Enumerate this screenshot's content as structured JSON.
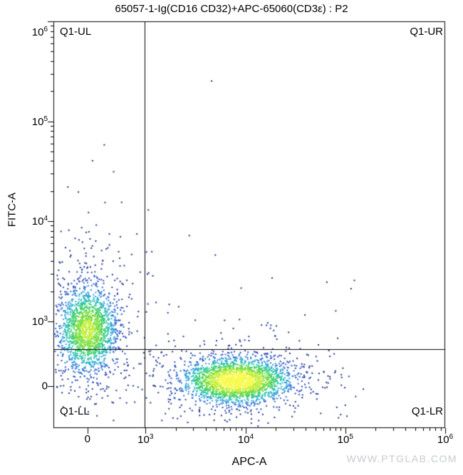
{
  "watermark": "WWW.PTGLAB.COM",
  "chart_data": {
    "type": "scatter",
    "subtype": "flow-cytometry-density-dot-plot",
    "title": "65057-1-Ig(CD16 CD32)+APC-65060(CD3ε) : P2",
    "xlabel": "APC-A",
    "ylabel": "FITC-A",
    "x_scale": "biexponential",
    "y_scale": "biexponential",
    "x_range_labels": [
      "0",
      "10^6"
    ],
    "y_range_labels": [
      "0",
      "10^6"
    ],
    "grid": false,
    "x_ticks": [
      {
        "label": "0",
        "pos": 0.087
      },
      {
        "label": "10^3",
        "pos": 0.235
      },
      {
        "label": "10^4",
        "pos": 0.491
      },
      {
        "label": "10^5",
        "pos": 0.745
      },
      {
        "label": "10^6",
        "pos": 1.0
      }
    ],
    "y_ticks": [
      {
        "label": "10^6",
        "pos": 0.0
      },
      {
        "label": "10^5",
        "pos": 0.246
      },
      {
        "label": "10^4",
        "pos": 0.491
      },
      {
        "label": "10^3",
        "pos": 0.738
      },
      {
        "label": "0",
        "pos": 0.897
      }
    ],
    "quadrants": {
      "x_gate_pos": 0.233,
      "y_gate_pos": 0.806,
      "labels": {
        "ul": "Q1-UL",
        "ur": "Q1-UR",
        "ll": "Q1-LL",
        "lr": "Q1-LR"
      }
    },
    "populations": [
      {
        "name": "fitc-positive-main",
        "dist": "gauss",
        "cx": 0.086,
        "cy": 0.757,
        "sx": 0.038,
        "sy": 0.052,
        "count": 1500
      },
      {
        "name": "fitc-positive-halo",
        "dist": "gauss",
        "cx": 0.086,
        "cy": 0.765,
        "sx": 0.072,
        "sy": 0.108,
        "count": 330
      },
      {
        "name": "fitc-positive-upper-tail",
        "dist": "gauss",
        "cx": 0.083,
        "cy": 0.615,
        "sx": 0.046,
        "sy": 0.095,
        "count": 55
      },
      {
        "name": "apc-positive-main",
        "dist": "gauss",
        "cx": 0.465,
        "cy": 0.882,
        "sx": 0.068,
        "sy": 0.027,
        "count": 2100
      },
      {
        "name": "apc-positive-halo",
        "dist": "gauss",
        "cx": 0.462,
        "cy": 0.878,
        "sx": 0.125,
        "sy": 0.058,
        "count": 400
      },
      {
        "name": "sparse-background",
        "dist": "uniform",
        "cx": 0.4,
        "cy": 0.77,
        "sx": 0.37,
        "sy": 0.21,
        "count": 55
      }
    ],
    "outliers": [
      [
        0.402,
        0.145
      ],
      [
        0.345,
        0.525
      ],
      [
        0.718,
        0.858
      ],
      [
        0.737,
        0.851
      ],
      [
        0.704,
        0.872
      ],
      [
        0.742,
        0.899
      ],
      [
        0.128,
        0.302
      ],
      [
        0.098,
        0.341
      ],
      [
        0.152,
        0.368
      ],
      [
        0.062,
        0.418
      ],
      [
        0.252,
        0.624
      ],
      [
        0.318,
        0.7
      ],
      [
        0.558,
        0.804
      ],
      [
        0.598,
        0.862
      ],
      [
        0.652,
        0.846
      ],
      [
        0.212,
        0.76
      ],
      [
        0.242,
        0.81
      ],
      [
        0.278,
        0.845
      ]
    ],
    "palette": [
      {
        "t": 0.78,
        "color": "#f7fa4e"
      },
      {
        "t": 0.6,
        "color": "#c3ee3e"
      },
      {
        "t": 0.45,
        "color": "#7ade3f"
      },
      {
        "t": 0.32,
        "color": "#3ecf6b"
      },
      {
        "t": 0.22,
        "color": "#2cc2b4"
      },
      {
        "t": 0.14,
        "color": "#2b9fd8"
      },
      {
        "t": 0.075,
        "color": "#2f6fd2"
      },
      {
        "t": 0.03,
        "color": "#2b4ab8"
      },
      {
        "t": 0,
        "color": "#20338f"
      }
    ],
    "seed": 42
  }
}
